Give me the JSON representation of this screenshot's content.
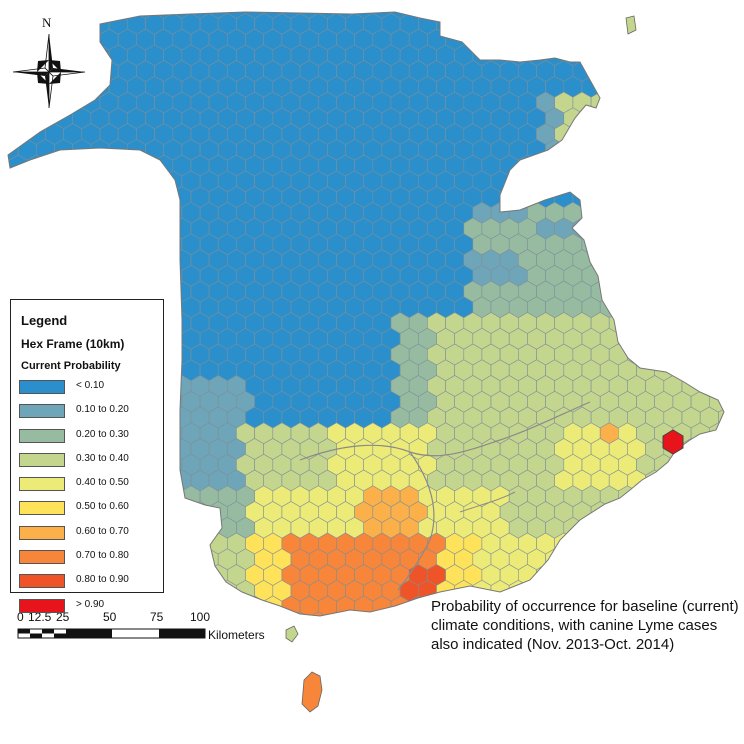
{
  "legend": {
    "title": "Legend",
    "subtitle": "Hex Frame (10km)",
    "field": "Current Probability",
    "classes": [
      {
        "label": "< 0.10",
        "color": "#2b8fcb"
      },
      {
        "label": "0.10 to 0.20",
        "color": "#6ea5b8"
      },
      {
        "label": "0.20 to 0.30",
        "color": "#97bba0"
      },
      {
        "label": "0.30 to 0.40",
        "color": "#c4d68e"
      },
      {
        "label": "0.40 to 0.50",
        "color": "#eceb78"
      },
      {
        "label": "0.50 to 0.60",
        "color": "#fde25a"
      },
      {
        "label": "0.60 to 0.70",
        "color": "#fbb04a"
      },
      {
        "label": "0.70 to 0.80",
        "color": "#f7853a"
      },
      {
        "label": "0.80 to 0.90",
        "color": "#ef5428"
      },
      {
        "label": "> 0.90",
        "color": "#e8141c"
      }
    ]
  },
  "north_arrow": {
    "letter": "N"
  },
  "scale_bar": {
    "ticks": [
      "0",
      "12.5",
      "25",
      "50",
      "75",
      "100"
    ],
    "unit": "Kilometers"
  },
  "caption": "Probability of occurrence for baseline (current) climate conditions, with canine Lyme cases also indicated (Nov. 2013-Oct. 2014)"
}
